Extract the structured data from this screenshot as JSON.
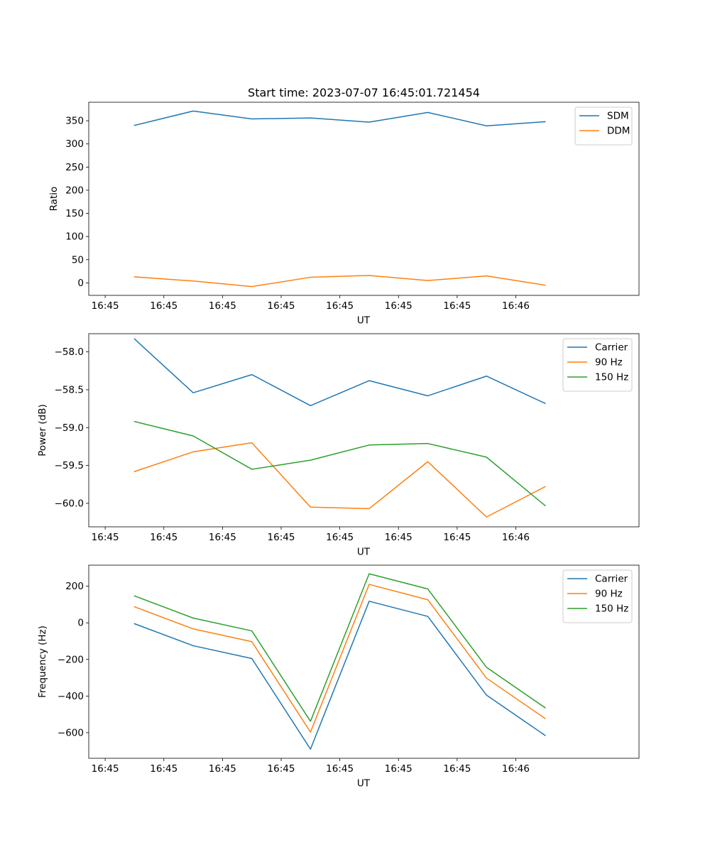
{
  "chart_data": [
    {
      "type": "line",
      "title": "Start time: 2023-07-07 16:45:01.721454",
      "xlabel": "UT",
      "ylabel": "Ratio",
      "x_tick_labels": [
        "16:45",
        "16:45",
        "16:45",
        "16:45",
        "16:45",
        "16:45",
        "16:45",
        "16:46"
      ],
      "x_tick_positions": [
        -0.5,
        0.5,
        1.5,
        2.5,
        3.5,
        4.5,
        5.5,
        6.5
      ],
      "xlim": [
        -0.78,
        8.6
      ],
      "ylim": [
        -27,
        390
      ],
      "y_ticks": [
        0,
        50,
        100,
        150,
        200,
        250,
        300,
        350
      ],
      "y_tick_labels": [
        "0",
        "50",
        "100",
        "150",
        "200",
        "250",
        "300",
        "350"
      ],
      "legend": "upper-right",
      "x": [
        0,
        1,
        2,
        3,
        4,
        5,
        6,
        7
      ],
      "series": [
        {
          "name": "SDM",
          "color": "#1f77b4",
          "values": [
            340,
            371,
            354,
            356,
            347,
            368,
            339,
            348
          ]
        },
        {
          "name": "DDM",
          "color": "#ff7f0e",
          "values": [
            13,
            4,
            -8,
            12,
            16,
            5,
            15,
            -5
          ]
        }
      ]
    },
    {
      "type": "line",
      "title": "",
      "xlabel": "UT",
      "ylabel": "Power (dB)",
      "x_tick_labels": [
        "16:45",
        "16:45",
        "16:45",
        "16:45",
        "16:45",
        "16:45",
        "16:45",
        "16:46"
      ],
      "x_tick_positions": [
        -0.5,
        0.5,
        1.5,
        2.5,
        3.5,
        4.5,
        5.5,
        6.5
      ],
      "xlim": [
        -0.78,
        8.6
      ],
      "ylim": [
        -60.31,
        -57.76
      ],
      "y_ticks": [
        -58.0,
        -58.5,
        -59.0,
        -59.5,
        -60.0
      ],
      "y_tick_labels": [
        "−58.0",
        "−58.5",
        "−59.0",
        "−59.5",
        "−60.0"
      ],
      "legend": "upper-right",
      "x": [
        0,
        1,
        2,
        3,
        4,
        5,
        6,
        7
      ],
      "series": [
        {
          "name": "Carrier",
          "color": "#1f77b4",
          "values": [
            -57.83,
            -58.54,
            -58.3,
            -58.71,
            -58.38,
            -58.58,
            -58.32,
            -58.68
          ]
        },
        {
          "name": "90 Hz",
          "color": "#ff7f0e",
          "values": [
            -59.58,
            -59.32,
            -59.2,
            -60.05,
            -60.07,
            -59.45,
            -60.18,
            -59.78
          ]
        },
        {
          "name": "150 Hz",
          "color": "#2ca02c",
          "values": [
            -58.92,
            -59.11,
            -59.55,
            -59.43,
            -59.23,
            -59.21,
            -59.39,
            -60.03
          ]
        }
      ]
    },
    {
      "type": "line",
      "title": "",
      "xlabel": "UT",
      "ylabel": "Frequency (Hz)",
      "x_tick_labels": [
        "16:45",
        "16:45",
        "16:45",
        "16:45",
        "16:45",
        "16:45",
        "16:45",
        "16:46"
      ],
      "x_tick_positions": [
        -0.5,
        0.5,
        1.5,
        2.5,
        3.5,
        4.5,
        5.5,
        6.5
      ],
      "xlim": [
        -0.78,
        8.6
      ],
      "ylim": [
        -740,
        315
      ],
      "y_ticks": [
        200,
        0,
        -200,
        -400,
        -600
      ],
      "y_tick_labels": [
        "200",
        "0",
        "−200",
        "−400",
        "−600"
      ],
      "legend": "upper-right",
      "x": [
        0,
        1,
        2,
        3,
        4,
        5,
        6,
        7
      ],
      "series": [
        {
          "name": "Carrier",
          "color": "#1f77b4",
          "values": [
            -5,
            -125,
            -195,
            -690,
            118,
            35,
            -395,
            -615
          ]
        },
        {
          "name": "90 Hz",
          "color": "#ff7f0e",
          "values": [
            88,
            -33,
            -103,
            -597,
            210,
            126,
            -302,
            -523
          ]
        },
        {
          "name": "150 Hz",
          "color": "#2ca02c",
          "values": [
            147,
            26,
            -44,
            -538,
            268,
            185,
            -243,
            -464
          ]
        }
      ]
    }
  ]
}
